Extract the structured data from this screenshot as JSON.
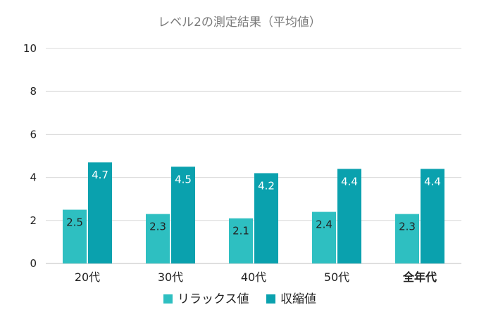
{
  "chart_data": {
    "type": "bar",
    "title": "レベル2の測定結果（平均値）",
    "categories": [
      "20代",
      "30代",
      "40代",
      "50代",
      "全年代"
    ],
    "series": [
      {
        "name": "リラックス値",
        "values": [
          2.5,
          2.3,
          2.1,
          2.4,
          2.3
        ],
        "color": "#2ebfc1",
        "label_color": "#222222"
      },
      {
        "name": "収縮値",
        "values": [
          4.7,
          4.5,
          4.2,
          4.4,
          4.4
        ],
        "color": "#0aa1ae",
        "label_color": "#ffffff"
      }
    ],
    "ylim": [
      0,
      10
    ],
    "yticks": [
      "0",
      "2",
      "4",
      "6",
      "8",
      "10"
    ],
    "grid": true,
    "legend_position": "bottom",
    "xlabel": "",
    "ylabel": "",
    "colors": {
      "gridline": "#d9d9d9",
      "axis": "#bfbfbf",
      "title": "#7a7a7a"
    }
  }
}
